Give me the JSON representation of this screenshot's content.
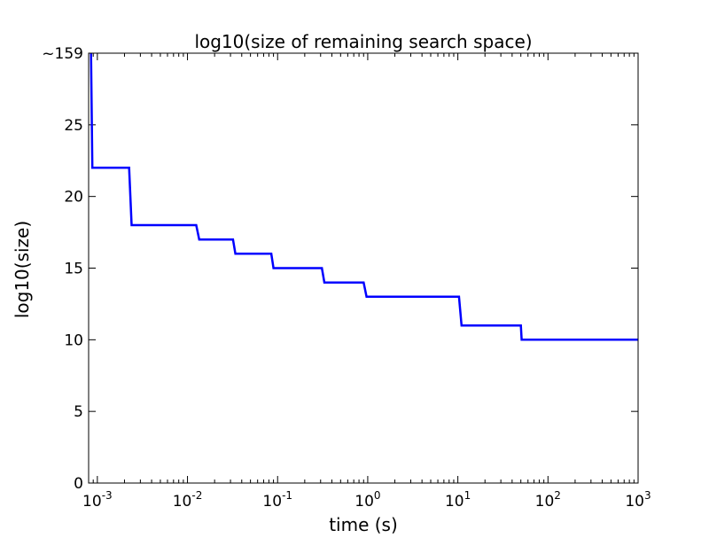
{
  "chart_data": {
    "type": "line",
    "title": "log10(size of remaining search space)",
    "xlabel": "time (s)",
    "ylabel": "log10(size)",
    "xscale": "log",
    "xlim": [
      0.0008,
      1000
    ],
    "ylim": [
      0,
      30
    ],
    "grid": false,
    "x_ticks": [
      {
        "base": "10",
        "exp": "-3",
        "value": 0.001
      },
      {
        "base": "10",
        "exp": "-2",
        "value": 0.01
      },
      {
        "base": "10",
        "exp": "-1",
        "value": 0.1
      },
      {
        "base": "10",
        "exp": "0",
        "value": 1
      },
      {
        "base": "10",
        "exp": "1",
        "value": 10
      },
      {
        "base": "10",
        "exp": "2",
        "value": 100
      },
      {
        "base": "10",
        "exp": "3",
        "value": 1000
      }
    ],
    "y_ticks": [
      {
        "label": "0",
        "value": 0
      },
      {
        "label": "5",
        "value": 5
      },
      {
        "label": "10",
        "value": 10
      },
      {
        "label": "15",
        "value": 15
      },
      {
        "label": "20",
        "value": 20
      },
      {
        "label": "25",
        "value": 25
      },
      {
        "label": "~159",
        "value": 30
      }
    ],
    "series": [
      {
        "color": "#0000ff",
        "x": [
          0.00085,
          0.00088,
          0.00225,
          0.0024,
          0.0125,
          0.0135,
          0.032,
          0.034,
          0.085,
          0.09,
          0.31,
          0.33,
          0.9,
          0.97,
          10.3,
          11,
          50,
          51,
          1000
        ],
        "y": [
          30,
          22,
          22,
          18,
          18,
          17,
          17,
          16,
          16,
          15,
          15,
          14,
          14,
          13,
          13,
          11,
          11,
          10,
          10
        ]
      }
    ]
  }
}
